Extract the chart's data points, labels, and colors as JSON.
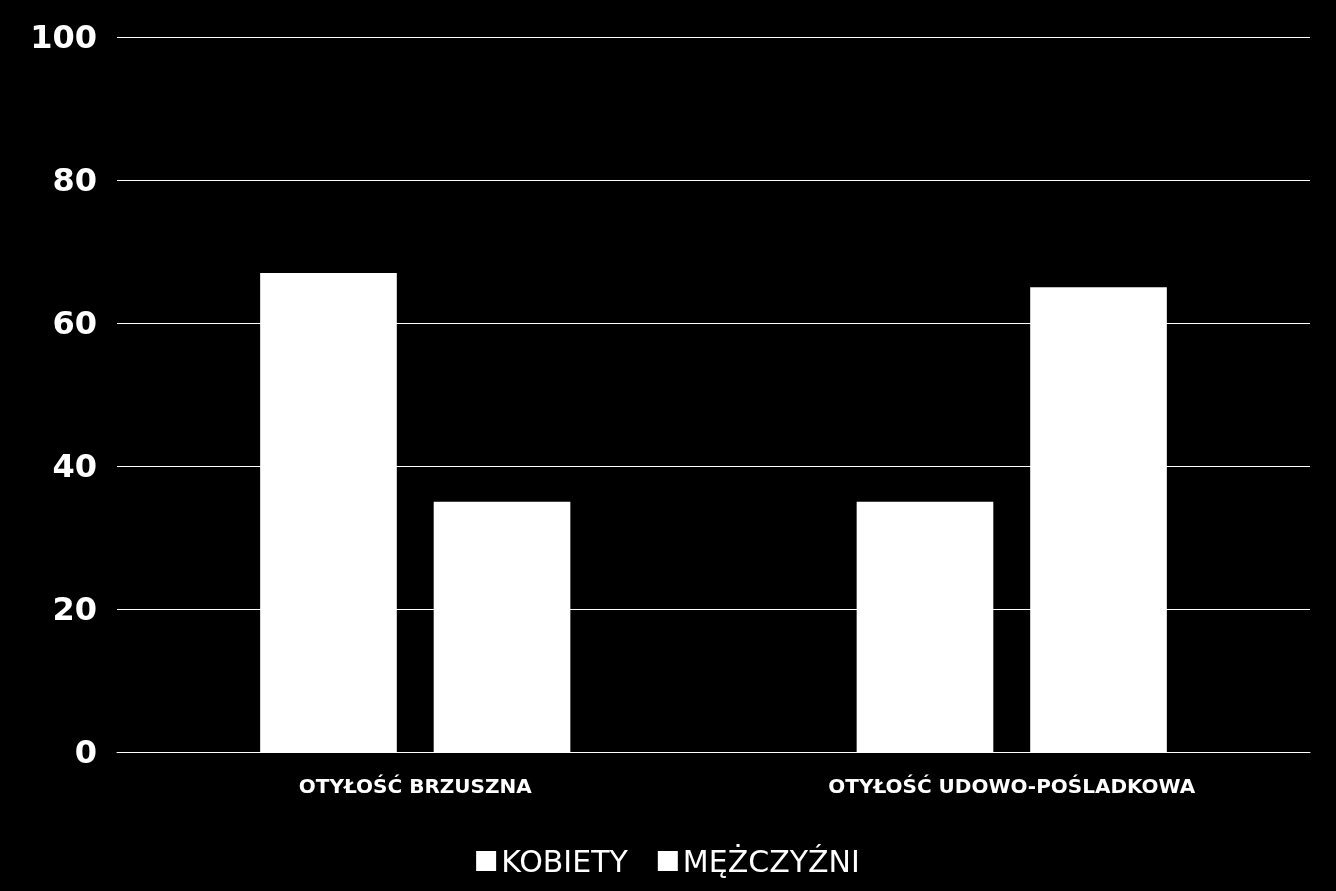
{
  "chart_data": {
    "type": "bar",
    "categories": [
      "OTYŁOŚĆ BRZUSZNA",
      "OTYŁOŚĆ UDOWO-POŚLADKOWA"
    ],
    "series": [
      {
        "name": "KOBIETY",
        "color": "#ffffff",
        "values": [
          67,
          35
        ]
      },
      {
        "name": "MĘŻCZYŹNI",
        "color": "#ffffff",
        "values": [
          35,
          65
        ]
      }
    ],
    "ylim": [
      0,
      100
    ],
    "yticks": [
      0,
      20,
      40,
      60,
      80,
      100
    ],
    "grid": "y",
    "legend": "bottom"
  }
}
